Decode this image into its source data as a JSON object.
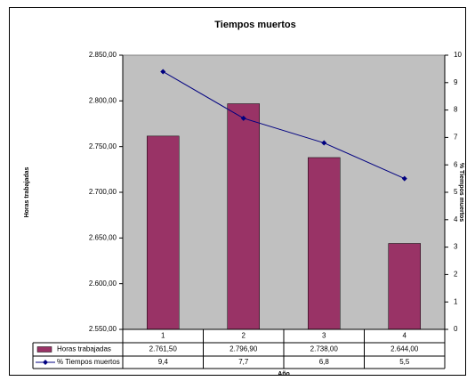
{
  "chart_data": {
    "type": "bar",
    "title": "Tiempos muertos",
    "ylabel": "Horas trabajadas",
    "y2label": "% Tiempos muertos",
    "xlabel": "Año",
    "categories": [
      "1",
      "2",
      "3",
      "4"
    ],
    "series": [
      {
        "name": "Horas trabajadas",
        "type": "bar",
        "color": "#993366",
        "values": [
          2761.5,
          2796.9,
          2738.0,
          2644.0
        ],
        "value_labels": [
          "2.761,50",
          "2.796,90",
          "2.738,00",
          "2.644,00"
        ]
      },
      {
        "name": "% Tiempos muertos",
        "type": "line",
        "axis": "y2",
        "color": "#000080",
        "values": [
          9.4,
          7.7,
          6.8,
          5.5
        ],
        "value_labels": [
          "9,4",
          "7,7",
          "6,8",
          "5,5"
        ]
      }
    ],
    "ylim": [
      2550,
      2850
    ],
    "yticks": [
      {
        "value": 2550,
        "label": "2.550,00"
      },
      {
        "value": 2600,
        "label": "2.600,00"
      },
      {
        "value": 2650,
        "label": "2.650,00"
      },
      {
        "value": 2700,
        "label": "2.700,00"
      },
      {
        "value": 2750,
        "label": "2.750,00"
      },
      {
        "value": 2800,
        "label": "2.800,00"
      },
      {
        "value": 2850,
        "label": "2.850,00"
      }
    ],
    "y2lim": [
      0,
      10
    ],
    "y2ticks": [
      0,
      1,
      2,
      3,
      4,
      5,
      6,
      7,
      8,
      9,
      10
    ],
    "plot_background": "#c0c0c0"
  }
}
